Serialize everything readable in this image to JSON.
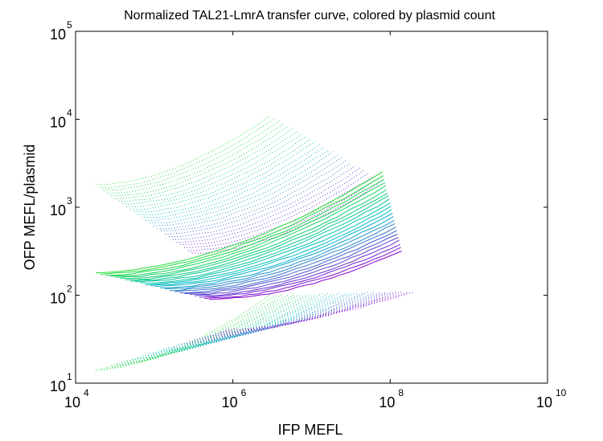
{
  "chart_data": {
    "type": "line",
    "title": "Normalized TAL21-LmrA transfer curve, colored by plasmid count",
    "xlabel": "IFP MEFL",
    "ylabel": "OFP MEFL/plasmid",
    "x_scale": "log",
    "y_scale": "log",
    "xlim": [
      10000,
      10000000000
    ],
    "ylim": [
      10,
      100000
    ],
    "grid": false,
    "x_ticks": [
      {
        "base": "10",
        "exp": "4",
        "value": 10000
      },
      {
        "base": "10",
        "exp": "6",
        "value": 1000000
      },
      {
        "base": "10",
        "exp": "8",
        "value": 100000000
      },
      {
        "base": "10",
        "exp": "10",
        "value": 10000000000
      }
    ],
    "y_ticks": [
      {
        "base": "10",
        "exp": "1",
        "value": 10
      },
      {
        "base": "10",
        "exp": "2",
        "value": 100
      },
      {
        "base": "10",
        "exp": "3",
        "value": 1000
      },
      {
        "base": "10",
        "exp": "4",
        "value": 10000
      },
      {
        "base": "10",
        "exp": "5",
        "value": 100000
      }
    ],
    "colors": {
      "low_plasmid": "#22dd33",
      "mid_plasmid": "#00bbcc",
      "high_plasmid": "#8800cc"
    },
    "bands": [
      {
        "kind": "upper_dotted",
        "n": 26,
        "start": [
          18000,
          1800
        ],
        "end": [
          300000,
          300
        ],
        "tip_start": [
          3000000,
          11000
        ],
        "tip_end": [
          80000000,
          2000
        ]
      },
      {
        "kind": "median_solid",
        "n": 24,
        "start": [
          18000,
          180
        ],
        "end": [
          500000,
          90
        ],
        "tip_start": [
          80000000,
          2500
        ],
        "tip_end": [
          140000000,
          320
        ]
      },
      {
        "kind": "lower_dotted",
        "n": 26,
        "start": [
          18000,
          14
        ],
        "end": [
          800000,
          40
        ],
        "tip_start": [
          3000000,
          100
        ],
        "tip_end": [
          200000000,
          110
        ]
      }
    ]
  }
}
